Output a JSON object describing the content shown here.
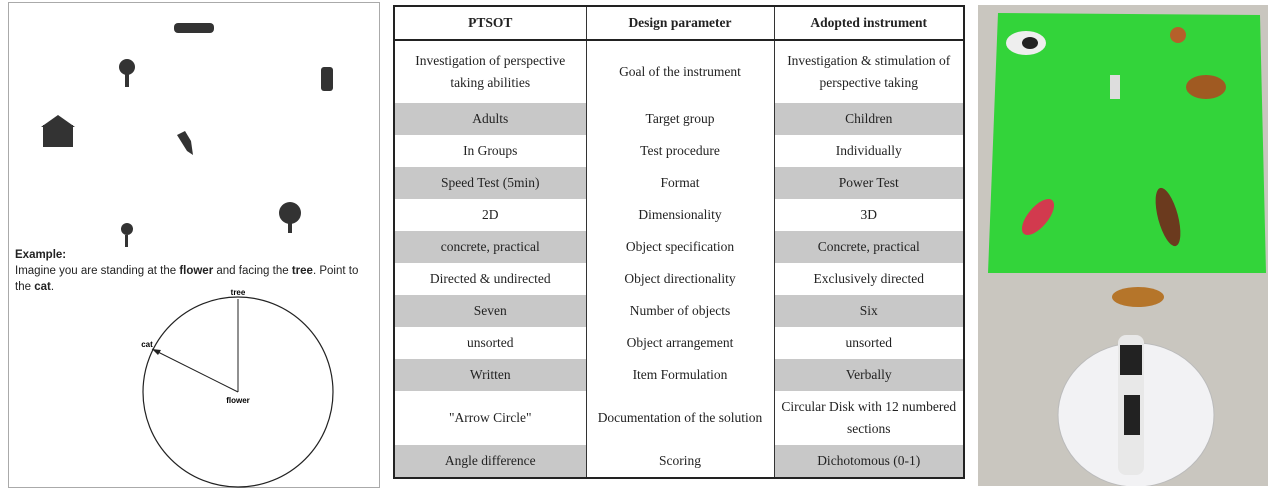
{
  "example": {
    "label": "Example:",
    "instruction": [
      "Imagine you are standing at the ",
      "flower",
      " and facing the ",
      "tree",
      ". Point to the ",
      "cat",
      "."
    ],
    "circle_labels": {
      "tree": "tree",
      "cat": "cat",
      "flower": "flower"
    }
  },
  "table": {
    "header": [
      "PTSOT",
      "Design parameter",
      "Adopted instrument"
    ],
    "rows": [
      [
        "Investigation of perspective taking abilities",
        "Goal of the instrument",
        "Investigation & stimulation of perspective taking"
      ],
      [
        "Adults",
        "Target group",
        "Children"
      ],
      [
        "In Groups",
        "Test procedure",
        "Individually"
      ],
      [
        "Speed Test (5min)",
        "Format",
        "Power Test"
      ],
      [
        "2D",
        "Dimensionality",
        "3D"
      ],
      [
        "concrete, practical",
        "Object specification",
        "Concrete, practical"
      ],
      [
        "Directed & undirected",
        "Object directionality",
        "Exclusively directed"
      ],
      [
        "Seven",
        "Number of objects",
        "Six"
      ],
      [
        "unsorted",
        "Object arrangement",
        "unsorted"
      ],
      [
        "Written",
        "Item Formulation",
        "Verbally"
      ],
      [
        "\"Arrow Circle\"",
        "Documentation of the solution",
        "Circular Disk with 12 numbered sections"
      ],
      [
        "Angle difference",
        "Scoring",
        "Dichotomous (0-1)"
      ]
    ]
  }
}
